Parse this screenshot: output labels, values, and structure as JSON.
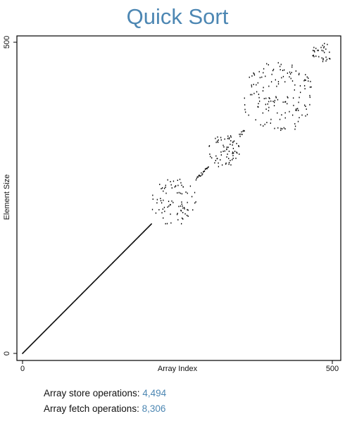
{
  "title": "Quick Sort",
  "stats": {
    "store_label": "Array store operations:",
    "store_value": "4,494",
    "fetch_label": "Array fetch operations:",
    "fetch_value": "8,306"
  },
  "colors": {
    "title": "#4d87b3",
    "stat_value": "#4d87b3",
    "points": "#000000",
    "axis": "#000000"
  },
  "chart_data": {
    "type": "scatter",
    "title": "Quick Sort",
    "xlabel": "Array Index",
    "ylabel": "Element Size",
    "xlim": [
      0,
      500
    ],
    "ylim": [
      0,
      500
    ],
    "x_ticks": [
      0,
      500
    ],
    "y_ticks": [
      0,
      500
    ],
    "grid": false,
    "series": [
      {
        "segments": [
          {
            "kind": "sorted_prefix",
            "x_range": [
              0,
              208
            ],
            "y_range": [
              0,
              208
            ]
          },
          {
            "kind": "scattered_block",
            "x_range": [
              209,
              280
            ],
            "y_range": [
              208,
              280
            ],
            "points": 85
          },
          {
            "kind": "near_diagonal",
            "x_range": [
              280,
              300
            ],
            "y_range": [
              280,
              300
            ],
            "points": 20
          },
          {
            "kind": "scattered_block",
            "x_range": [
              300,
              350
            ],
            "y_range": [
              300,
              350
            ],
            "points": 70
          },
          {
            "kind": "near_diagonal",
            "x_range": [
              350,
              358
            ],
            "y_range": [
              350,
              358
            ],
            "points": 8
          },
          {
            "kind": "scattered_block",
            "x_range": [
              358,
              468
            ],
            "y_range": [
              358,
              468
            ],
            "points": 150
          },
          {
            "kind": "scattered_block",
            "x_range": [
              468,
              500
            ],
            "y_range": [
              468,
              500
            ],
            "points": 32
          }
        ]
      }
    ]
  }
}
